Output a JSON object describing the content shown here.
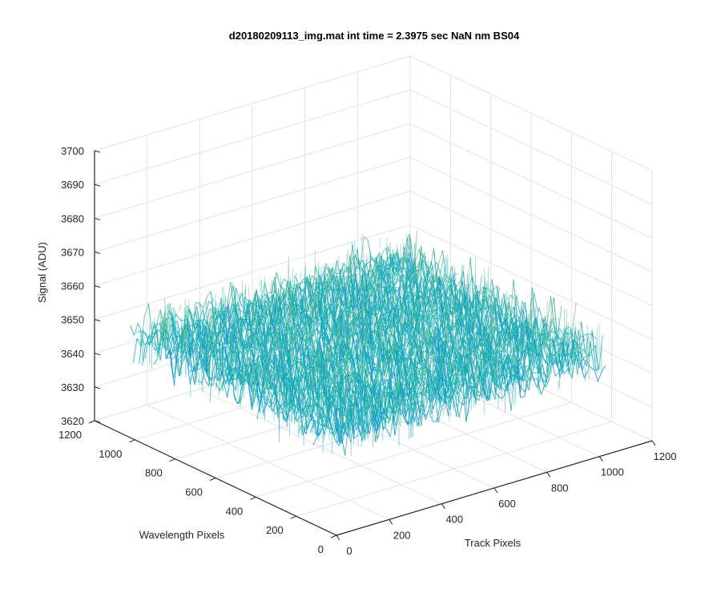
{
  "chart_data": {
    "type": "surface",
    "title": "d20180209113_img.mat int time = 2.3975 sec  NaN nm BS04",
    "xlabel": "Track Pixels",
    "ylabel": "Wavelength Pixels",
    "zlabel": "Signal (ADU)",
    "x_ticks": [
      "0",
      "200",
      "400",
      "600",
      "800",
      "1000",
      "1200"
    ],
    "y_ticks": [
      "0",
      "200",
      "400",
      "600",
      "800",
      "1000",
      "1200"
    ],
    "z_ticks": [
      "3620",
      "3630",
      "3640",
      "3650",
      "3660",
      "3670",
      "3680",
      "3690",
      "3700"
    ],
    "xlim": [
      0,
      1200
    ],
    "ylim": [
      0,
      1200
    ],
    "zlim": [
      3620,
      3700
    ],
    "grid": true,
    "surface": {
      "x_extent": [
        1,
        1024
      ],
      "y_extent": [
        1,
        1024
      ],
      "z_mean": 3650,
      "z_noise_range": [
        3625,
        3690
      ],
      "colormap": "parula"
    }
  }
}
